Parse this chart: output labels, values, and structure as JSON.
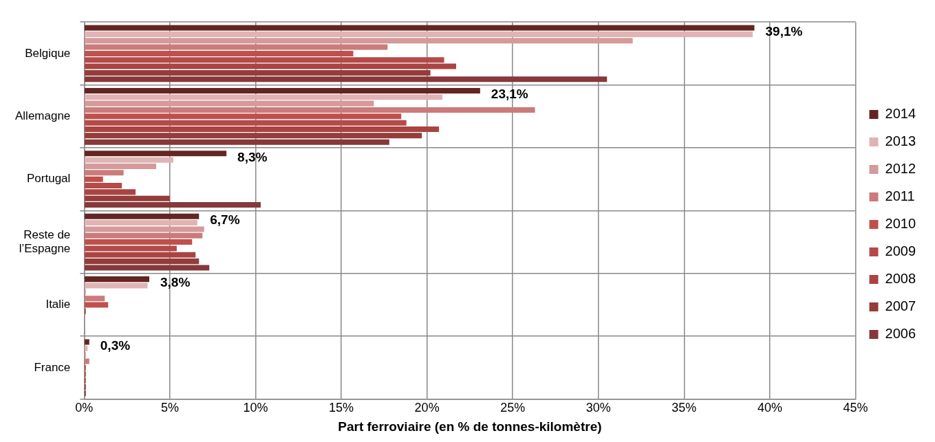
{
  "chart_data": {
    "type": "bar",
    "orientation": "horizontal",
    "xlabel": "Part ferroviaire (en % de tonnes-kilomètre)",
    "categories": [
      "Belgique",
      "Allemagne",
      "Portugal",
      "Reste de l’Espagne",
      "Italie",
      "France"
    ],
    "series": [
      {
        "name": "2014",
        "color": "#632523",
        "values": [
          39.1,
          23.1,
          8.3,
          6.7,
          3.8,
          0.3
        ],
        "value_labels": [
          "39,1%",
          "23,1%",
          "8,3%",
          "6,7%",
          "3,8%",
          "0,3%"
        ]
      },
      {
        "name": "2013",
        "color": "#e0b4b4",
        "values": [
          39.0,
          20.9,
          5.2,
          6.6,
          3.7,
          0.2
        ]
      },
      {
        "name": "2012",
        "color": "#d59a9a",
        "values": [
          32.0,
          16.9,
          4.2,
          7.0,
          0.1,
          0.1
        ]
      },
      {
        "name": "2011",
        "color": "#cb7b7b",
        "values": [
          17.7,
          26.3,
          2.3,
          6.9,
          1.2,
          0.3
        ]
      },
      {
        "name": "2010",
        "color": "#c0504d",
        "values": [
          15.7,
          18.5,
          1.1,
          6.3,
          1.4,
          0.1
        ]
      },
      {
        "name": "2009",
        "color": "#b54a48",
        "values": [
          21.0,
          18.8,
          2.2,
          5.4,
          0.1,
          0.1
        ]
      },
      {
        "name": "2008",
        "color": "#a94442",
        "values": [
          21.7,
          20.7,
          3.0,
          6.5,
          0,
          0.1
        ]
      },
      {
        "name": "2007",
        "color": "#943d3b",
        "values": [
          20.2,
          19.7,
          5.0,
          6.7,
          0,
          0.1
        ]
      },
      {
        "name": "2006",
        "color": "#86383a",
        "values": [
          30.5,
          17.8,
          10.3,
          7.3,
          0,
          0.1
        ]
      }
    ],
    "xlim": [
      0,
      45
    ],
    "xticks": [
      {
        "value": 0,
        "label": "0%"
      },
      {
        "value": 5,
        "label": "5%"
      },
      {
        "value": 10,
        "label": "10%"
      },
      {
        "value": 15,
        "label": "15%"
      },
      {
        "value": 20,
        "label": "20%"
      },
      {
        "value": 25,
        "label": "25%"
      },
      {
        "value": 30,
        "label": "30%"
      },
      {
        "value": 35,
        "label": "35%"
      },
      {
        "value": 40,
        "label": "40%"
      },
      {
        "value": 45,
        "label": "45%"
      }
    ],
    "grid": true,
    "legend": "right"
  }
}
